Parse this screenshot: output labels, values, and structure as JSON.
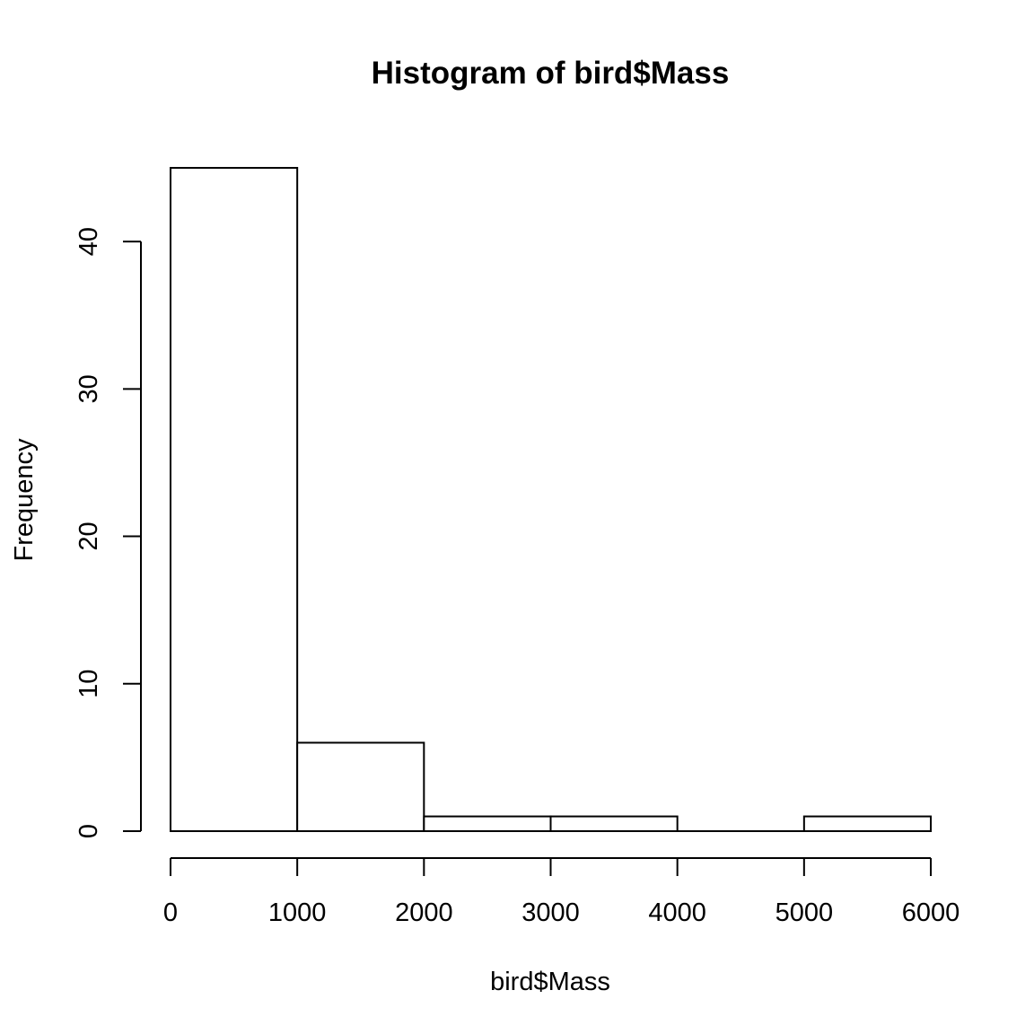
{
  "chart_data": {
    "type": "bar",
    "title": "Histogram of bird$Mass",
    "xlabel": "bird$Mass",
    "ylabel": "Frequency",
    "bins": [
      {
        "start": 0,
        "end": 1000,
        "count": 45
      },
      {
        "start": 1000,
        "end": 2000,
        "count": 6
      },
      {
        "start": 2000,
        "end": 3000,
        "count": 1
      },
      {
        "start": 3000,
        "end": 4000,
        "count": 1
      },
      {
        "start": 4000,
        "end": 5000,
        "count": 0
      },
      {
        "start": 5000,
        "end": 6000,
        "count": 1
      }
    ],
    "xlim": [
      0,
      6000
    ],
    "ylim": [
      0,
      45
    ],
    "x_ticks": [
      "0",
      "1000",
      "2000",
      "3000",
      "4000",
      "5000",
      "6000"
    ],
    "y_ticks": [
      "0",
      "10",
      "20",
      "30",
      "40"
    ],
    "grid": false,
    "legend": "none"
  }
}
